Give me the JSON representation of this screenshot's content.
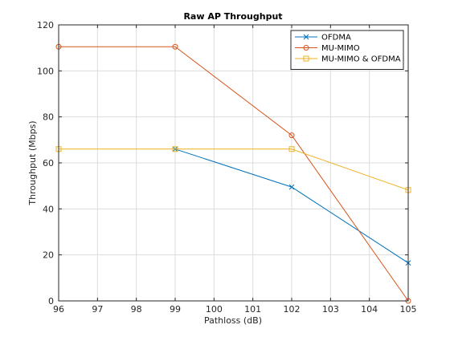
{
  "chart_data": {
    "type": "line",
    "title": "Raw AP Throughput",
    "xlabel": "Pathloss (dB)",
    "ylabel": "Throughput (Mbps)",
    "xlim": [
      96,
      105
    ],
    "ylim": [
      0,
      120
    ],
    "xticks": [
      96,
      97,
      98,
      99,
      100,
      101,
      102,
      103,
      104,
      105
    ],
    "yticks": [
      0,
      20,
      40,
      60,
      80,
      100,
      120
    ],
    "grid": true,
    "legend_position": "top-right",
    "series": [
      {
        "name": "OFDMA",
        "color": "#0072BD",
        "marker": "x",
        "x": [
          99,
          102,
          105
        ],
        "y": [
          66,
          49.5,
          16.5
        ]
      },
      {
        "name": "MU-MIMO",
        "color": "#D95319",
        "marker": "o",
        "x": [
          96,
          99,
          102,
          105
        ],
        "y": [
          110.5,
          110.5,
          72,
          0
        ]
      },
      {
        "name": "MU-MIMO & OFDMA",
        "color": "#EDB120",
        "marker": "s",
        "x": [
          96,
          99,
          102,
          105
        ],
        "y": [
          66,
          66,
          66,
          48.2
        ]
      }
    ]
  }
}
